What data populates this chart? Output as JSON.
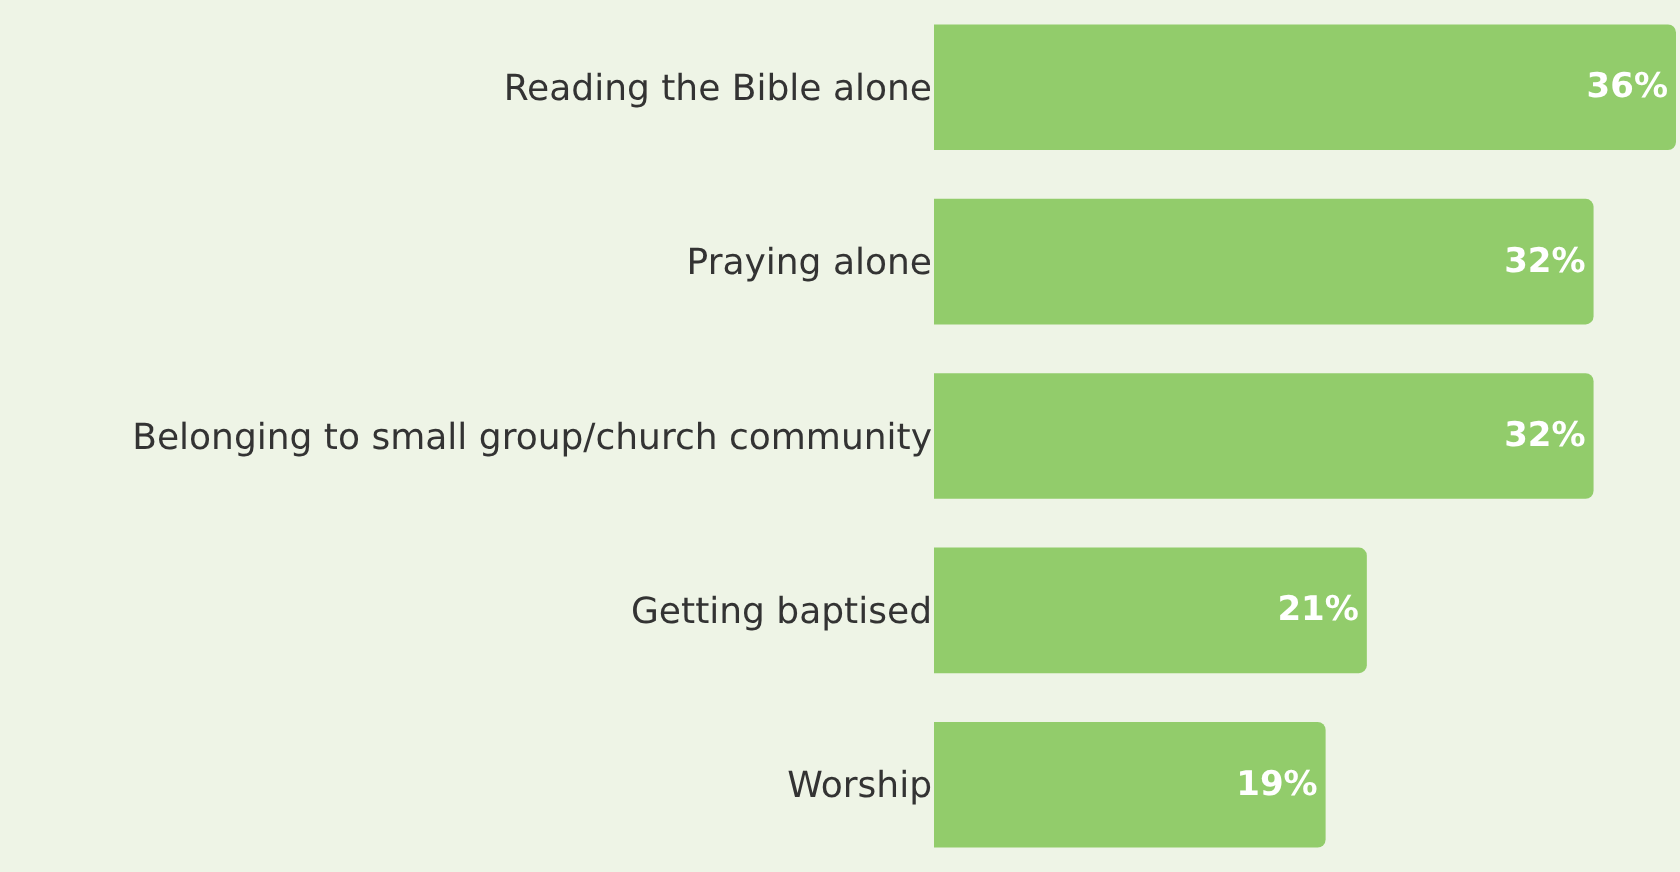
{
  "chart_data": {
    "type": "bar",
    "orientation": "horizontal",
    "categories": [
      "Reading the Bible alone",
      "Praying alone",
      "Belonging to small group/church community",
      "Getting baptised",
      "Worship"
    ],
    "values": [
      36,
      32,
      32,
      21,
      19
    ],
    "value_labels": [
      "36%",
      "32%",
      "32%",
      "21%",
      "19%"
    ],
    "color": "#92cc6b",
    "xlim": [
      0,
      36
    ],
    "tick_labels": "y"
  }
}
